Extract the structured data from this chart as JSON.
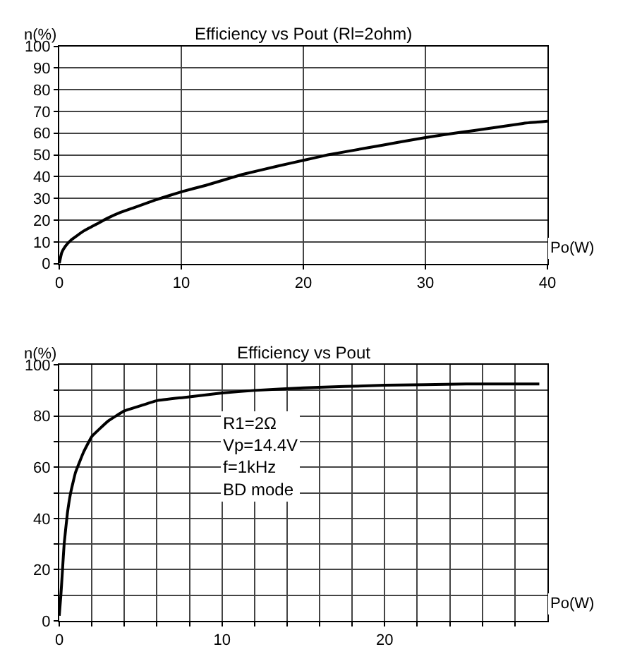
{
  "chart_data": [
    {
      "type": "line",
      "title": "Efficiency vs Pout (Rl=2ohm)",
      "xlabel": "Po(W)",
      "ylabel": "n(%)",
      "x": [
        0,
        0.2,
        0.5,
        1,
        2,
        3,
        4,
        5,
        6,
        8,
        10,
        12,
        15,
        18,
        20,
        22,
        25,
        28,
        30,
        33,
        35,
        38,
        40
      ],
      "series": [
        {
          "color": "#000000",
          "values": [
            0,
            5,
            8,
            11,
            15,
            18,
            21,
            23.5,
            25.5,
            29.5,
            33,
            36,
            41,
            45,
            47.5,
            50,
            53,
            56,
            58,
            60.5,
            62,
            64.5,
            65.5
          ]
        }
      ],
      "xlim": [
        0,
        40
      ],
      "xticks": [
        0,
        10,
        20,
        30,
        40
      ],
      "ylim": [
        0,
        100
      ],
      "yticks": [
        0,
        10,
        20,
        30,
        40,
        50,
        60,
        70,
        80,
        90,
        100
      ],
      "grid": true
    },
    {
      "type": "line",
      "title": "Efficiency vs Pout",
      "xlabel": "Po(W)",
      "ylabel": "n(%)",
      "annotations": [
        "R1=2Ω\nVp=14.4V\nf=1kHz\nBD mode"
      ],
      "x": [
        0,
        0.1,
        0.2,
        0.3,
        0.5,
        0.7,
        1,
        1.5,
        2,
        3,
        4,
        5,
        6,
        8,
        10,
        12,
        15,
        20,
        25,
        29.5
      ],
      "series": [
        {
          "color": "#000000",
          "values": [
            2,
            10,
            20,
            30,
            42,
            50,
            58,
            66,
            72,
            78,
            82,
            84,
            86,
            87.5,
            89,
            90,
            91,
            92,
            92.5,
            92.5
          ]
        }
      ],
      "xlim": [
        0,
        30
      ],
      "xticks": [
        0,
        {
          "value": 2,
          "label": null
        },
        {
          "value": 4,
          "label": null
        },
        {
          "value": 6,
          "label": null
        },
        {
          "value": 8,
          "label": null
        },
        10,
        {
          "value": 12,
          "label": null
        },
        {
          "value": 14,
          "label": null
        },
        {
          "value": 16,
          "label": null
        },
        {
          "value": 18,
          "label": null
        },
        20,
        {
          "value": 22,
          "label": null
        },
        {
          "value": 24,
          "label": null
        },
        {
          "value": 26,
          "label": null
        },
        {
          "value": 28,
          "label": null
        }
      ],
      "ylim": [
        0,
        100
      ],
      "yticks": [
        0,
        {
          "value": 10,
          "label": null
        },
        20,
        {
          "value": 30,
          "label": null
        },
        40,
        {
          "value": 50,
          "label": null
        },
        60,
        {
          "value": 70,
          "label": null
        },
        80,
        {
          "value": 90,
          "label": null
        },
        100
      ],
      "grid": true
    }
  ]
}
